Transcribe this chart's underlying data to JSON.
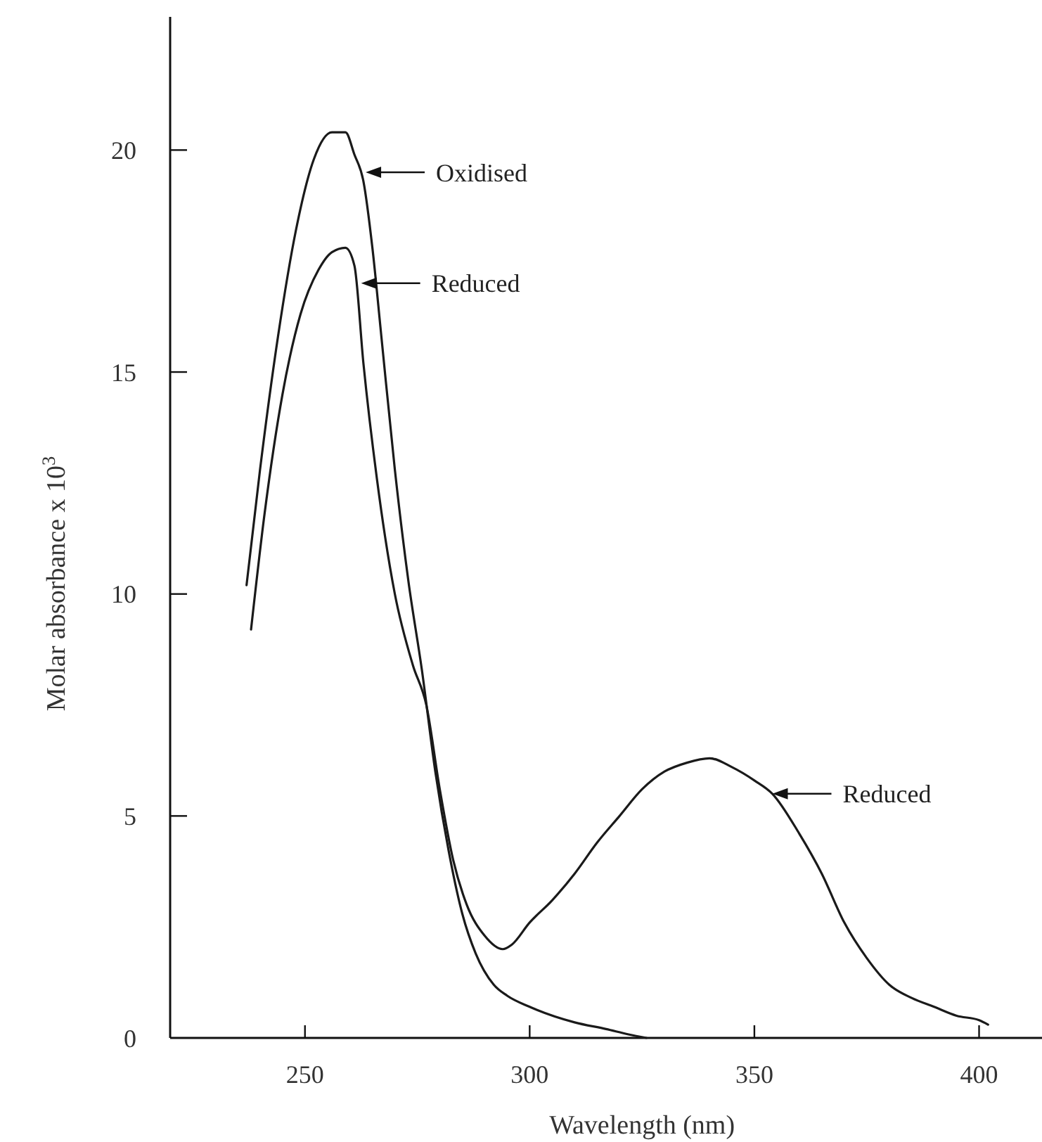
{
  "chart_data": {
    "type": "line",
    "xlabel": "Wavelength (nm)",
    "ylabel": "Molar absorbance x 10$^{3}$",
    "xlim": [
      220,
      414
    ],
    "ylim": [
      0,
      23
    ],
    "xticks": [
      250,
      300,
      350,
      400
    ],
    "yticks": [
      0,
      5,
      10,
      15,
      20
    ],
    "grid": false,
    "marker": "none",
    "line_style": "solid",
    "series": [
      {
        "color": "#1a1a1a",
        "x": [
          237,
          240,
          244,
          248,
          252,
          256,
          259,
          261,
          263,
          265,
          267,
          270,
          273,
          276,
          279,
          282,
          285,
          288,
          292,
          295,
          300,
          310,
          317,
          322,
          326
        ],
        "values": [
          10.2,
          12.8,
          15.8,
          18.2,
          19.8,
          20.4,
          20.4,
          19.9,
          19.3,
          17.8,
          15.8,
          12.8,
          10.3,
          8.3,
          6.0,
          4.2,
          2.8,
          1.9,
          1.2,
          0.95,
          0.7,
          0.35,
          0.2,
          0.08,
          0
        ]
      },
      {
        "color": "#1a1a1a",
        "x": [
          238,
          241,
          245,
          249,
          253,
          256,
          259,
          261,
          263,
          266,
          270,
          274,
          277,
          280,
          283,
          286,
          290,
          294,
          296,
          300,
          305,
          310,
          315,
          320,
          325,
          330,
          335,
          340,
          345,
          350,
          354,
          360,
          365,
          370,
          375,
          380,
          385,
          390,
          395,
          400,
          402
        ],
        "values": [
          9.2,
          11.8,
          14.5,
          16.3,
          17.3,
          17.7,
          17.8,
          17.4,
          15.2,
          12.6,
          10.0,
          8.4,
          7.5,
          5.6,
          4.0,
          3.0,
          2.3,
          2.0,
          2.1,
          2.6,
          3.1,
          3.7,
          4.4,
          5.0,
          5.6,
          6.0,
          6.2,
          6.3,
          6.1,
          5.8,
          5.5,
          4.6,
          3.7,
          2.6,
          1.8,
          1.2,
          0.9,
          0.7,
          0.5,
          0.4,
          0.3
        ]
      }
    ],
    "annotations": [
      {
        "text": "Oxidised",
        "x": 263.5,
        "y": 19.5
      },
      {
        "text": "Reduced",
        "x": 262.5,
        "y": 17
      },
      {
        "text": "Reduced",
        "x": 354,
        "y": 5.5
      }
    ]
  }
}
